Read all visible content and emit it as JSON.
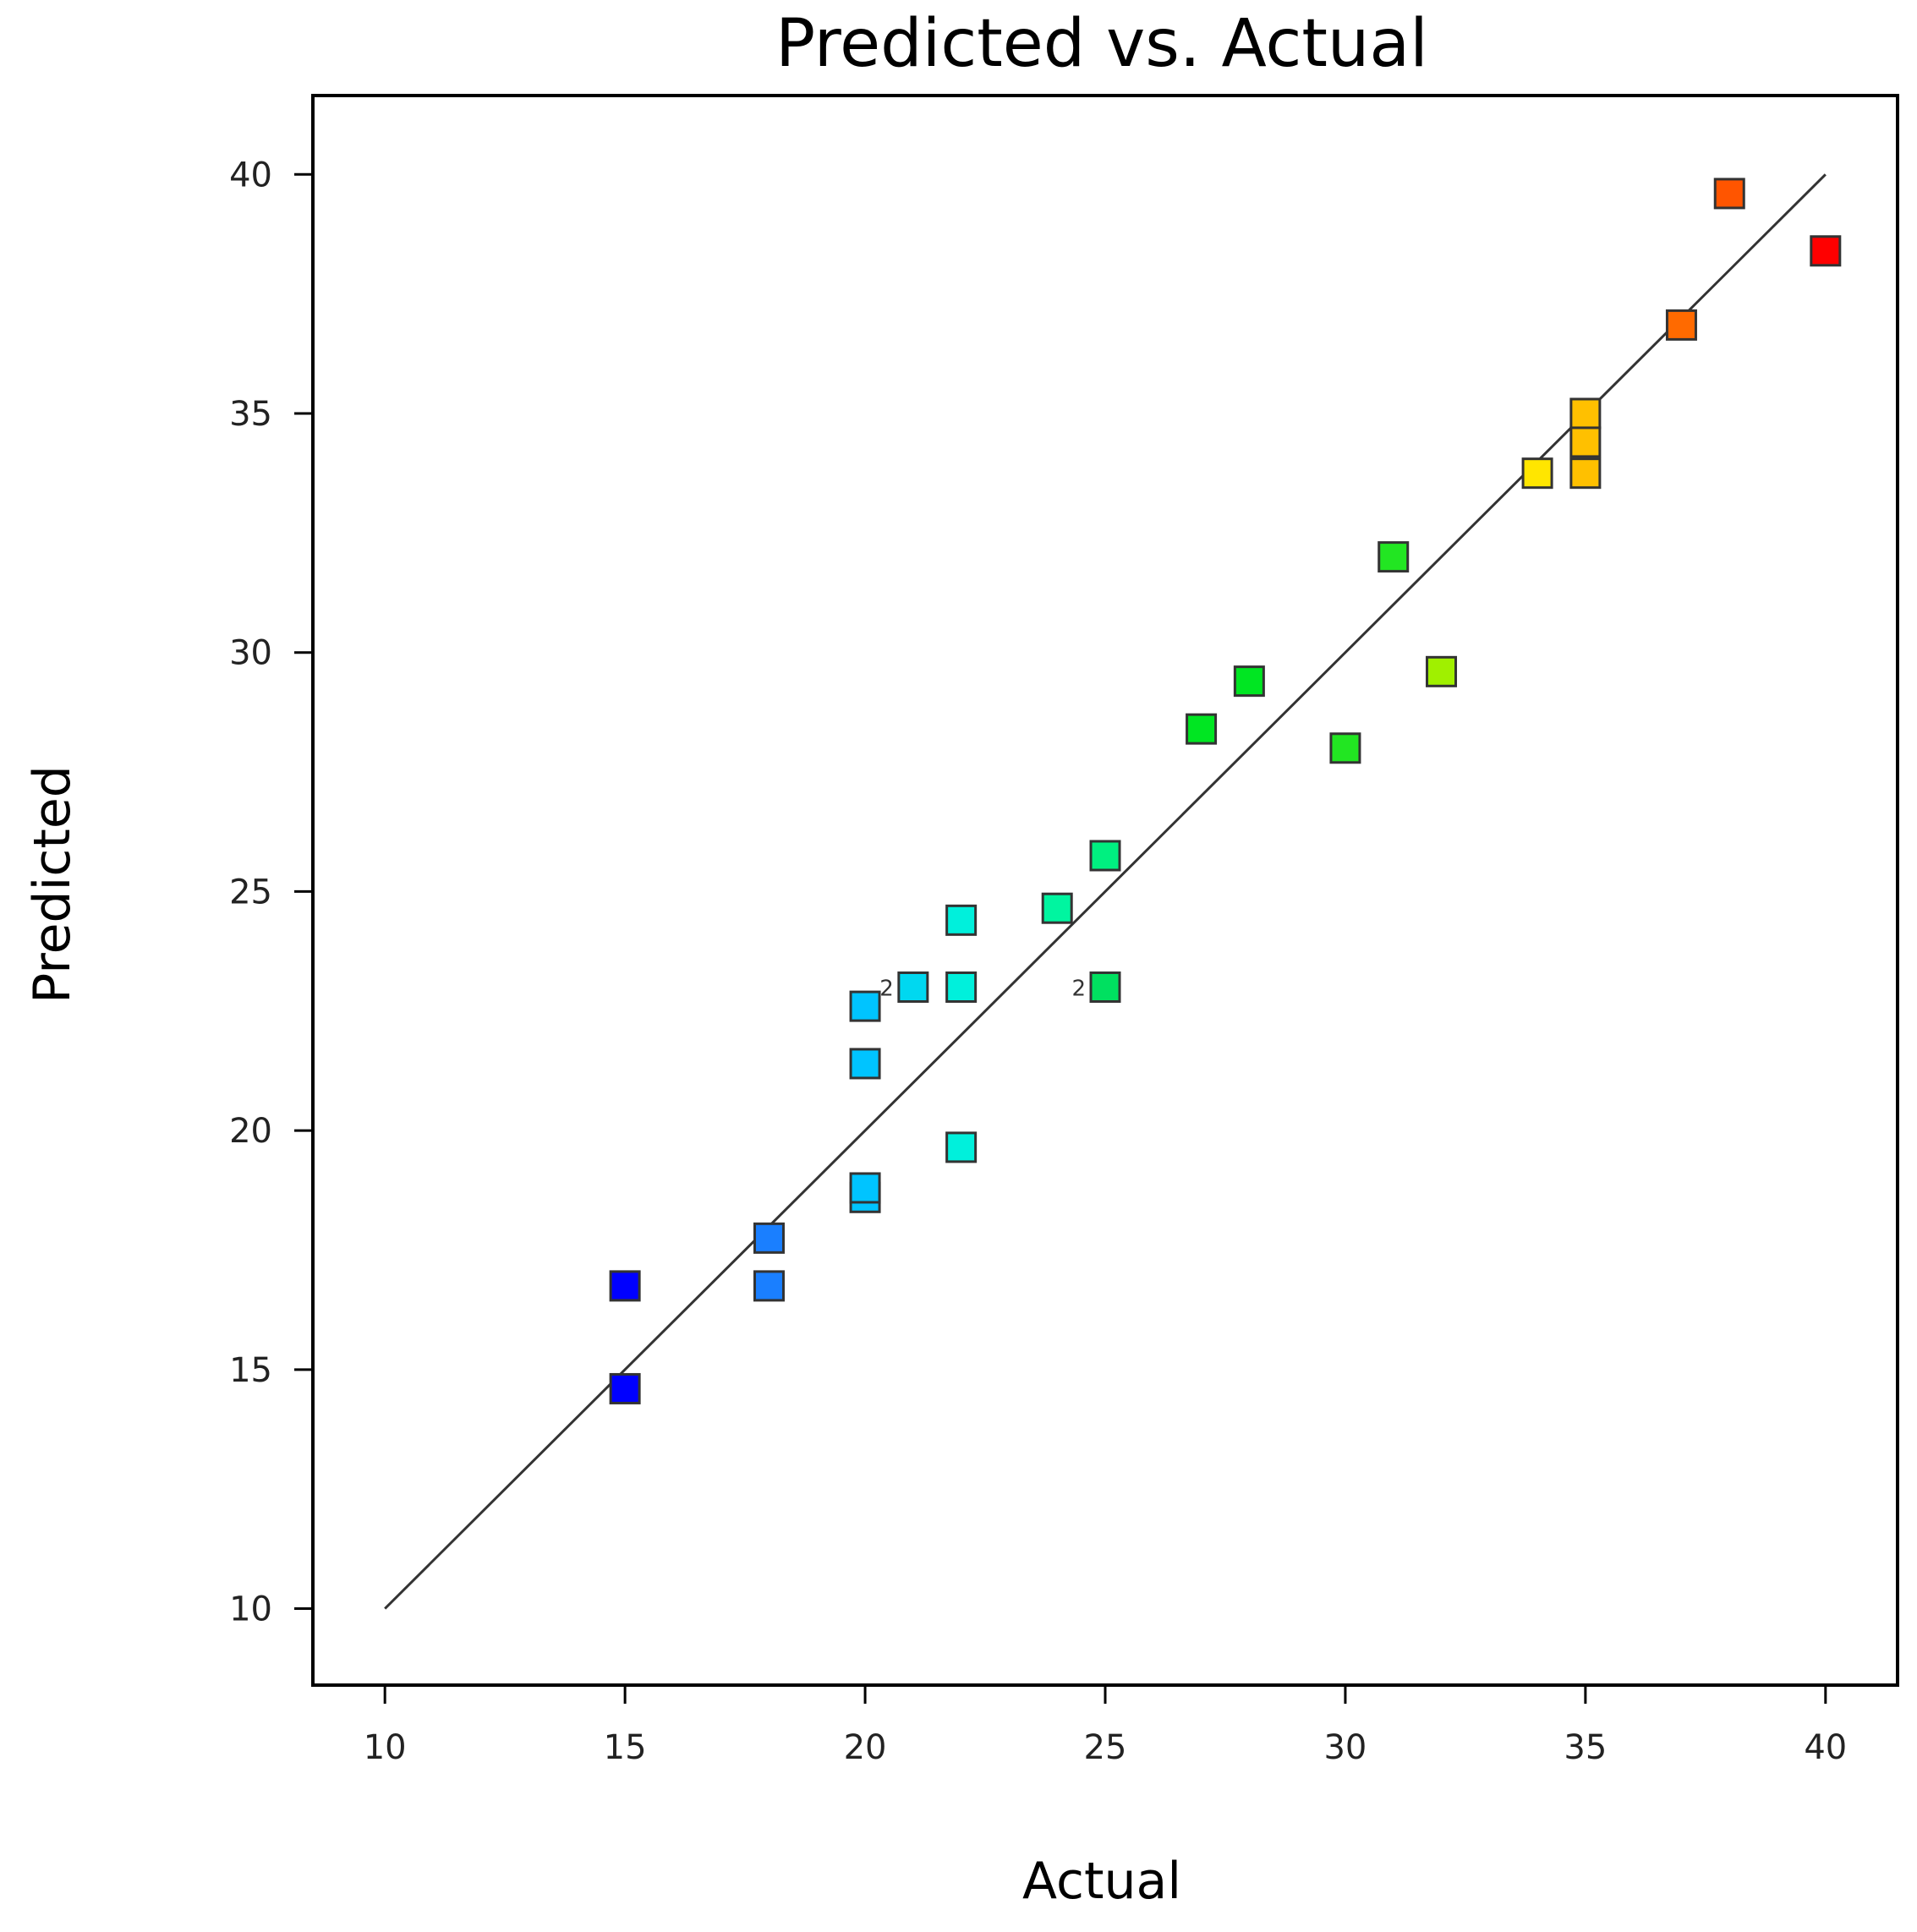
{
  "chart_data": {
    "type": "scatter",
    "title": "Predicted vs. Actual",
    "xlabel": "Actual",
    "ylabel": "Predicted",
    "xlim": [
      8.5,
      41.5
    ],
    "ylim": [
      8.4,
      41.65
    ],
    "xticks": [
      10,
      15,
      20,
      25,
      30,
      35,
      40
    ],
    "yticks": [
      10,
      15,
      20,
      25,
      30,
      35,
      40
    ],
    "grid": false,
    "reference_line": {
      "from": [
        10,
        10
      ],
      "to": [
        40,
        40
      ],
      "color": "#333333"
    },
    "points": [
      {
        "x": 15,
        "y": 16.75,
        "color": "#0000ff"
      },
      {
        "x": 15,
        "y": 14.6,
        "color": "#0000ff"
      },
      {
        "x": 18,
        "y": 17.75,
        "color": "#1a7fff"
      },
      {
        "x": 18,
        "y": 16.75,
        "color": "#1a7fff"
      },
      {
        "x": 20,
        "y": 22.6,
        "color": "#00c4ff"
      },
      {
        "x": 20,
        "y": 21.4,
        "color": "#00c4ff"
      },
      {
        "x": 20,
        "y": 18.6,
        "color": "#00c4ff"
      },
      {
        "x": 20,
        "y": 18.8,
        "color": "#00c4ff"
      },
      {
        "x": 21,
        "y": 23.0,
        "color": "#00d8f0",
        "count": "2"
      },
      {
        "x": 22,
        "y": 24.4,
        "color": "#00f0dc"
      },
      {
        "x": 22,
        "y": 23.0,
        "color": "#00f0dc"
      },
      {
        "x": 22,
        "y": 19.65,
        "color": "#00f0dc"
      },
      {
        "x": 24,
        "y": 24.65,
        "color": "#00f5a0"
      },
      {
        "x": 25,
        "y": 25.75,
        "color": "#00f080"
      },
      {
        "x": 25,
        "y": 23.0,
        "color": "#00e060",
        "count": "2"
      },
      {
        "x": 27,
        "y": 28.4,
        "color": "#00e622"
      },
      {
        "x": 28,
        "y": 29.4,
        "color": "#00e622"
      },
      {
        "x": 30,
        "y": 28.0,
        "color": "#22e622"
      },
      {
        "x": 31,
        "y": 32.0,
        "color": "#22e622"
      },
      {
        "x": 32,
        "y": 29.6,
        "color": "#a0f000"
      },
      {
        "x": 34,
        "y": 33.75,
        "color": "#ffe600"
      },
      {
        "x": 35,
        "y": 35.0,
        "color": "#ffc000"
      },
      {
        "x": 35,
        "y": 34.4,
        "color": "#ffc000"
      },
      {
        "x": 35,
        "y": 33.75,
        "color": "#ffc000"
      },
      {
        "x": 37,
        "y": 36.85,
        "color": "#ff6a00"
      },
      {
        "x": 38,
        "y": 39.6,
        "color": "#ff5500"
      },
      {
        "x": 40,
        "y": 38.4,
        "color": "#ff0000"
      }
    ]
  }
}
